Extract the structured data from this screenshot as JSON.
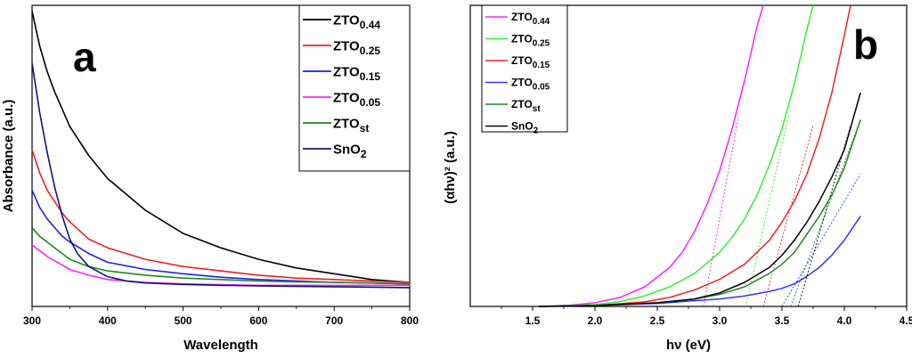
{
  "chart_data": [
    {
      "type": "line",
      "panel_label": "a",
      "xlabel": "Wavelength",
      "ylabel": "Absorbance (a.u.)",
      "xlim": [
        300,
        800
      ],
      "ylim": [
        0,
        1
      ],
      "x_ticks": [
        300,
        400,
        500,
        600,
        700,
        800
      ],
      "y_ticks_shown": false,
      "grid": false,
      "legend_position": "top-right",
      "series": [
        {
          "name": "ZTO",
          "subscript": "0.44",
          "color": "#000000",
          "x": [
            300,
            310,
            320,
            330,
            340,
            350,
            375,
            400,
            450,
            500,
            550,
            600,
            650,
            700,
            750,
            800
          ],
          "y": [
            0.98,
            0.86,
            0.77,
            0.7,
            0.64,
            0.58,
            0.48,
            0.4,
            0.29,
            0.21,
            0.16,
            0.12,
            0.09,
            0.07,
            0.05,
            0.04
          ]
        },
        {
          "name": "ZTO",
          "subscript": "0.25",
          "color": "#ee2222",
          "x": [
            300,
            310,
            320,
            330,
            340,
            350,
            375,
            400,
            450,
            500,
            550,
            600,
            650,
            700,
            750,
            800
          ],
          "y": [
            0.5,
            0.42,
            0.36,
            0.32,
            0.28,
            0.25,
            0.19,
            0.16,
            0.12,
            0.095,
            0.08,
            0.065,
            0.055,
            0.05,
            0.045,
            0.04
          ]
        },
        {
          "name": "ZTO",
          "subscript": "0.15",
          "color": "#1f1fee",
          "x": [
            300,
            310,
            320,
            330,
            340,
            350,
            375,
            400,
            450,
            500,
            550,
            600,
            650,
            700,
            750,
            800
          ],
          "y": [
            0.36,
            0.3,
            0.26,
            0.23,
            0.2,
            0.18,
            0.14,
            0.11,
            0.085,
            0.07,
            0.058,
            0.05,
            0.045,
            0.04,
            0.038,
            0.035
          ]
        },
        {
          "name": "ZTO",
          "subscript": "0.05",
          "color": "#ff22ff",
          "x": [
            300,
            310,
            320,
            330,
            340,
            350,
            375,
            400,
            450,
            500,
            550,
            600,
            650,
            700,
            750,
            800
          ],
          "y": [
            0.17,
            0.15,
            0.13,
            0.115,
            0.1,
            0.085,
            0.065,
            0.05,
            0.04,
            0.035,
            0.032,
            0.03,
            0.03,
            0.03,
            0.03,
            0.03
          ]
        },
        {
          "name": "ZTO",
          "subscript": "st",
          "color": "#1e8a1e",
          "x": [
            300,
            310,
            320,
            330,
            340,
            350,
            375,
            400,
            450,
            500,
            550,
            600,
            650,
            700,
            750,
            800
          ],
          "y": [
            0.23,
            0.2,
            0.18,
            0.16,
            0.14,
            0.12,
            0.095,
            0.08,
            0.065,
            0.055,
            0.05,
            0.045,
            0.042,
            0.04,
            0.038,
            0.035
          ]
        },
        {
          "name": "SnO",
          "subscript": "2",
          "color": "#141478",
          "x": [
            300,
            310,
            320,
            330,
            340,
            350,
            360,
            375,
            400,
            425,
            450,
            500,
            550,
            600,
            700,
            800
          ],
          "y": [
            0.8,
            0.63,
            0.49,
            0.37,
            0.27,
            0.19,
            0.14,
            0.095,
            0.06,
            0.045,
            0.038,
            0.033,
            0.03,
            0.028,
            0.025,
            0.022
          ]
        }
      ]
    },
    {
      "type": "line",
      "panel_label": "b",
      "xlabel": "hν (eV)",
      "ylabel": "(αhν)² (a.u.)",
      "xlim": [
        1.0,
        4.5
      ],
      "ylim": [
        0,
        1
      ],
      "x_ticks": [
        1.5,
        2.0,
        2.5,
        3.0,
        3.5,
        4.0,
        4.5
      ],
      "y_ticks_shown": false,
      "grid": false,
      "legend_position": "top-left",
      "series": [
        {
          "name": "ZTO",
          "subscript": "0.44",
          "color": "#ff22ff",
          "x": [
            1.55,
            1.8,
            2.0,
            2.2,
            2.4,
            2.6,
            2.7,
            2.8,
            2.9,
            3.0,
            3.1,
            3.2,
            3.3,
            3.35
          ],
          "y": [
            0.0,
            0.004,
            0.012,
            0.03,
            0.065,
            0.13,
            0.18,
            0.25,
            0.34,
            0.45,
            0.59,
            0.75,
            0.93,
            1.02
          ]
        },
        {
          "name": "ZTO",
          "subscript": "0.25",
          "color": "#33ee33",
          "x": [
            1.55,
            2.0,
            2.2,
            2.4,
            2.6,
            2.8,
            3.0,
            3.1,
            3.2,
            3.3,
            3.4,
            3.5,
            3.6,
            3.7,
            3.75
          ],
          "y": [
            0.0,
            0.006,
            0.016,
            0.035,
            0.065,
            0.11,
            0.18,
            0.23,
            0.29,
            0.37,
            0.47,
            0.59,
            0.74,
            0.92,
            1.02
          ]
        },
        {
          "name": "ZTO",
          "subscript": "0.15",
          "color": "#ee2222",
          "x": [
            1.55,
            2.0,
            2.4,
            2.6,
            2.8,
            3.0,
            3.2,
            3.3,
            3.4,
            3.5,
            3.6,
            3.7,
            3.8,
            3.9,
            4.0,
            4.05
          ],
          "y": [
            0.0,
            0.003,
            0.015,
            0.03,
            0.055,
            0.09,
            0.14,
            0.18,
            0.22,
            0.28,
            0.35,
            0.44,
            0.56,
            0.71,
            0.9,
            1.02
          ]
        },
        {
          "name": "ZTO",
          "subscript": "0.05",
          "color": "#3333ff",
          "x": [
            1.55,
            2.0,
            2.5,
            3.0,
            3.2,
            3.4,
            3.5,
            3.6,
            3.7,
            3.8,
            3.9,
            4.0,
            4.13
          ],
          "y": [
            0.0,
            0.003,
            0.01,
            0.025,
            0.035,
            0.05,
            0.06,
            0.075,
            0.1,
            0.13,
            0.17,
            0.22,
            0.3
          ]
        },
        {
          "name": "ZTO",
          "subscript": "st",
          "color": "#1e8a1e",
          "x": [
            1.55,
            2.0,
            2.5,
            2.8,
            3.0,
            3.2,
            3.4,
            3.5,
            3.6,
            3.7,
            3.8,
            3.9,
            4.0,
            4.13
          ],
          "y": [
            0.0,
            0.003,
            0.012,
            0.025,
            0.04,
            0.065,
            0.11,
            0.14,
            0.18,
            0.24,
            0.3,
            0.37,
            0.46,
            0.62
          ]
        },
        {
          "name": "SnO",
          "subscript": "2",
          "color": "#000000",
          "x": [
            1.55,
            2.0,
            2.5,
            2.8,
            3.0,
            3.2,
            3.4,
            3.5,
            3.6,
            3.7,
            3.8,
            3.9,
            4.0,
            4.13
          ],
          "y": [
            0.0,
            0.003,
            0.012,
            0.025,
            0.045,
            0.08,
            0.13,
            0.17,
            0.22,
            0.28,
            0.35,
            0.43,
            0.52,
            0.71
          ]
        }
      ],
      "tangent_lines": [
        {
          "color": "#ff22ff",
          "x": [
            2.87,
            3.15
          ],
          "y": [
            0.0,
            0.63
          ]
        },
        {
          "color": "#33ee33",
          "x": [
            3.21,
            3.55
          ],
          "y": [
            0.0,
            0.63
          ]
        },
        {
          "color": "#ee2222",
          "x": [
            3.35,
            3.75
          ],
          "y": [
            0.0,
            0.6
          ]
        },
        {
          "color": "#3333ff",
          "x": [
            3.5,
            4.13
          ],
          "y": [
            0.0,
            0.44
          ]
        },
        {
          "color": "#1e8a1e",
          "x": [
            3.57,
            4.13
          ],
          "y": [
            0.0,
            0.62
          ]
        },
        {
          "color": "#000000",
          "x": [
            3.63,
            4.05
          ],
          "y": [
            0.0,
            0.6
          ]
        }
      ]
    }
  ]
}
